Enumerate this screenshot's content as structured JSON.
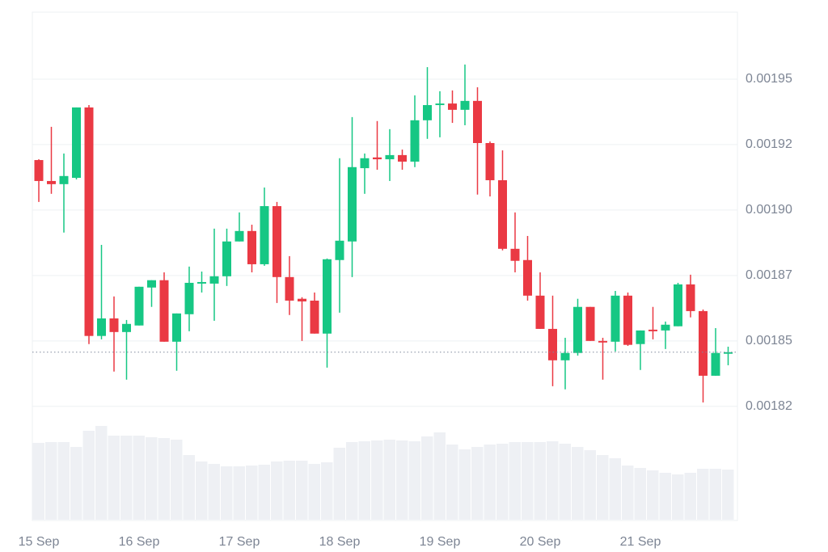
{
  "chart_data": {
    "type": "candlestick",
    "categories": [
      "15 Sep",
      null,
      null,
      null,
      null,
      null,
      null,
      null,
      "16 Sep",
      null,
      null,
      null,
      null,
      null,
      null,
      null,
      "17 Sep",
      null,
      null,
      null,
      null,
      null,
      null,
      null,
      "18 Sep",
      null,
      null,
      null,
      null,
      null,
      null,
      null,
      "19 Sep",
      null,
      null,
      null,
      null,
      null,
      null,
      null,
      "20 Sep",
      null,
      null,
      null,
      null,
      null,
      null,
      null,
      "21 Sep",
      null,
      null,
      null,
      null,
      null,
      null,
      null
    ],
    "open": [
      0.0019191,
      0.0019111,
      0.0019099,
      0.0019123,
      0.0019392,
      0.0018519,
      0.0018586,
      0.0018534,
      0.0018559,
      0.0018704,
      0.0018732,
      0.0018497,
      0.0018602,
      0.0018719,
      0.0018719,
      0.0018747,
      0.001888,
      0.001892,
      0.0018793,
      0.0019015,
      0.0018744,
      0.0018661,
      0.0018654,
      0.0018528,
      0.0018809,
      0.001888,
      0.001916,
      0.0019201,
      0.0019194,
      0.001921,
      0.0019185,
      0.0019343,
      0.0019401,
      0.0019407,
      0.0019383,
      0.0019417,
      0.0019256,
      0.0019114,
      0.0018852,
      0.0018809,
      0.0018673,
      0.0018546,
      0.0018426,
      0.0018454,
      0.001863,
      0.00185,
      0.0018497,
      0.0018673,
      0.0018488,
      0.0018543,
      0.001854,
      0.0018556,
      0.0018716,
      0.0018614,
      0.0018367,
      0.0018451
    ],
    "high": [
      0.0019194,
      0.0019318,
      0.0019216,
      0.0019392,
      0.0019401,
      0.0018867,
      0.001867,
      0.001858,
      0.0018707,
      0.0018732,
      0.0018762,
      0.0018605,
      0.0018784,
      0.0018765,
      0.0018929,
      0.0018929,
      0.0018991,
      0.0018944,
      0.0019086,
      0.0019031,
      0.0018824,
      0.0018667,
      0.0018685,
      0.0018815,
      0.0019198,
      0.0019355,
      0.0019216,
      0.001934,
      0.0019309,
      0.0019231,
      0.0019438,
      0.0019546,
      0.0019454,
      0.0019457,
      0.0019556,
      0.0019469,
      0.0019262,
      0.0019228,
      0.0018991,
      0.0018901,
      0.0018762,
      0.0018673,
      0.0018512,
      0.0018661,
      0.001863,
      0.0018512,
      0.0018691,
      0.0018685,
      0.001854,
      0.001863,
      0.0018574,
      0.0018722,
      0.0018753,
      0.001862,
      0.0018549,
      0.0018478
    ],
    "low": [
      0.0019031,
      0.0019062,
      0.0018914,
      0.0019117,
      0.0018488,
      0.0018506,
      0.0018383,
      0.0018352,
      0.0018559,
      0.001863,
      0.0018497,
      0.0018386,
      0.0018537,
      0.0018685,
      0.0018577,
      0.001871,
      0.001888,
      0.0018762,
      0.0018787,
      0.0018645,
      0.0018599,
      0.00185,
      0.0018528,
      0.0018398,
      0.0018608,
      0.0018744,
      0.0019062,
      0.0019154,
      0.0019111,
      0.0019154,
      0.0019164,
      0.0019272,
      0.0019278,
      0.0019333,
      0.0019324,
      0.0019059,
      0.0019052,
      0.0018846,
      0.0018762,
      0.0018654,
      0.0018546,
      0.0018327,
      0.0018315,
      0.0018444,
      0.00185,
      0.0018352,
      0.001846,
      0.0018481,
      0.0018389,
      0.0018506,
      0.0018469,
      0.0018556,
      0.001859,
      0.0018265,
      0.0018367,
      0.0018407
    ],
    "close": [
      0.0019111,
      0.0019099,
      0.001913,
      0.0019392,
      0.0018519,
      0.0018586,
      0.0018534,
      0.0018565,
      0.0018707,
      0.0018732,
      0.0018497,
      0.0018605,
      0.0018722,
      0.0018725,
      0.0018747,
      0.001888,
      0.001892,
      0.0018793,
      0.0019015,
      0.0018744,
      0.0018654,
      0.0018651,
      0.0018528,
      0.0018812,
      0.0018883,
      0.0019164,
      0.0019198,
      0.0019194,
      0.001921,
      0.0019185,
      0.0019343,
      0.0019401,
      0.0019407,
      0.0019383,
      0.0019417,
      0.0019256,
      0.0019114,
      0.0018852,
      0.0018806,
      0.0018673,
      0.0018546,
      0.0018426,
      0.0018454,
      0.001863,
      0.00185,
      0.0018494,
      0.0018673,
      0.0018485,
      0.001854,
      0.0018537,
      0.0018562,
      0.0018716,
      0.0018614,
      0.0018367,
      0.0018454,
      0.0018457
    ],
    "volume": [
      95,
      96,
      96,
      90,
      110,
      116,
      104,
      104,
      104,
      102,
      101,
      99,
      80,
      72,
      69,
      66,
      66,
      67,
      68,
      72,
      73,
      73,
      69,
      71,
      89,
      96,
      97,
      98,
      99,
      98,
      97,
      103,
      108,
      93,
      87,
      90,
      93,
      94,
      96,
      96,
      96,
      97,
      94,
      90,
      86,
      80,
      76,
      67,
      64,
      61,
      58,
      56,
      58,
      63,
      63,
      62
    ],
    "up_color": "#16c784",
    "down_color": "#ea3943",
    "volume_color": "#eef0f4",
    "ylim": [
      0.00182,
      0.001975
    ],
    "volume_lim": [
      0,
      123
    ],
    "yticks": [
      {
        "value": 0.00195,
        "label": "0.00195"
      },
      {
        "value": 0.001925,
        "label": "0.00192"
      },
      {
        "value": 0.0019,
        "label": "0.00190"
      },
      {
        "value": 0.001875,
        "label": "0.00187"
      },
      {
        "value": 0.00185,
        "label": "0.00185"
      },
      {
        "value": 0.001825,
        "label": "0.00182"
      }
    ],
    "grid": true,
    "last_price_line": true
  }
}
